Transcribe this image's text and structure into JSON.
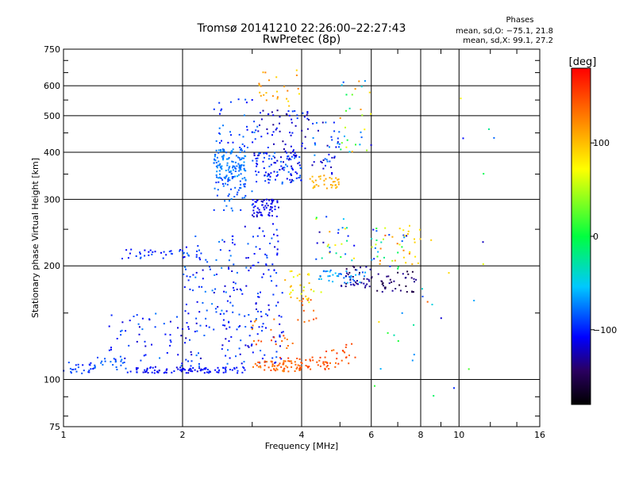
{
  "chart_data": {
    "type": "scatter",
    "title": "Tromsø 20141210 22:26:00–22:27:43",
    "subtitle": "RwPretec (8p)",
    "xlabel": "Frequency [MHz]",
    "ylabel": "Stationary phase Virtual Height [km]",
    "x_scale": "log",
    "y_scale": "log",
    "xlim": [
      1,
      16
    ],
    "ylim": [
      75,
      750
    ],
    "x_ticks": [
      1,
      2,
      4,
      6,
      8,
      10,
      16
    ],
    "x_tick_labels": [
      "1",
      "2",
      "4",
      "6",
      "8",
      "10",
      "16"
    ],
    "y_ticks": [
      75,
      100,
      200,
      300,
      400,
      500,
      600,
      750
    ],
    "y_tick_labels": [
      "75",
      "100",
      "200",
      "300",
      "400",
      "500",
      "600",
      "750"
    ],
    "grid": true,
    "stats": {
      "heading": "Phases",
      "o_line": "mean, sd,O: −75.1, 21.8",
      "x_line": "mean, sd,X:  99.1, 27.2"
    },
    "colorbar": {
      "label": "[deg]",
      "min": -180,
      "max": 180,
      "ticks": [
        100,
        0,
        -100
      ],
      "tick_labels": [
        "100",
        "0",
        "−100"
      ],
      "colormap": "rainbow"
    },
    "clusters": [
      {
        "f": [
          1.0,
          1.2
        ],
        "h": [
          103,
          112
        ],
        "phase": [
          -105,
          -80
        ],
        "n": 25
      },
      {
        "f": [
          1.2,
          1.45
        ],
        "h": [
          105,
          115
        ],
        "phase": [
          -90,
          -75
        ],
        "n": 22
      },
      {
        "f": [
          1.45,
          2.3
        ],
        "h": [
          104,
          108
        ],
        "phase": [
          -120,
          -100
        ],
        "n": 70
      },
      {
        "f": [
          2.3,
          2.9
        ],
        "h": [
          104,
          108
        ],
        "phase": [
          -110,
          -95
        ],
        "n": 30
      },
      {
        "f": [
          1.3,
          2.3
        ],
        "h": [
          108,
          150
        ],
        "phase": [
          -125,
          -75
        ],
        "n": 70
      },
      {
        "f": [
          1.4,
          2.3
        ],
        "h": [
          209,
          222
        ],
        "phase": [
          -110,
          -80
        ],
        "n": 40
      },
      {
        "f": [
          2.0,
          2.7
        ],
        "h": [
          135,
          240
        ],
        "phase": [
          -120,
          -70
        ],
        "n": 70
      },
      {
        "f": [
          2.4,
          2.9
        ],
        "h": [
          340,
          410
        ],
        "phase": [
          -85,
          -65
        ],
        "n": 120
      },
      {
        "f": [
          2.4,
          3.0
        ],
        "h": [
          280,
          345
        ],
        "phase": [
          -100,
          -70
        ],
        "n": 50
      },
      {
        "f": [
          2.4,
          3.1
        ],
        "h": [
          410,
          560
        ],
        "phase": [
          -110,
          -70
        ],
        "n": 35
      },
      {
        "f": [
          2.5,
          3.6
        ],
        "h": [
          110,
          150
        ],
        "phase": [
          -120,
          -75
        ],
        "n": 70
      },
      {
        "f": [
          2.6,
          3.6
        ],
        "h": [
          150,
          260
        ],
        "phase": [
          -120,
          -80
        ],
        "n": 80
      },
      {
        "f": [
          3.0,
          3.5
        ],
        "h": [
          270,
          300
        ],
        "phase": [
          -125,
          -105
        ],
        "n": 60
      },
      {
        "f": [
          3.0,
          4.0
        ],
        "h": [
          330,
          400
        ],
        "phase": [
          -125,
          -75
        ],
        "n": 110
      },
      {
        "f": [
          3.0,
          4.2
        ],
        "h": [
          400,
          520
        ],
        "phase": [
          -135,
          -90
        ],
        "n": 60
      },
      {
        "f": [
          3.0,
          4.0
        ],
        "h": [
          105,
          112
        ],
        "phase": [
          125,
          150
        ],
        "n": 55
      },
      {
        "f": [
          3.5,
          5.0
        ],
        "h": [
          106,
          115
        ],
        "phase": [
          135,
          160
        ],
        "n": 45
      },
      {
        "f": [
          3.0,
          3.8
        ],
        "h": [
          120,
          145
        ],
        "phase": [
          125,
          155
        ],
        "n": 20
      },
      {
        "f": [
          3.9,
          4.4
        ],
        "h": [
          140,
          165
        ],
        "phase": [
          130,
          150
        ],
        "n": 12
      },
      {
        "f": [
          3.6,
          4.6
        ],
        "h": [
          160,
          195
        ],
        "phase": [
          55,
          110
        ],
        "n": 30
      },
      {
        "f": [
          3.1,
          4.0
        ],
        "h": [
          520,
          660
        ],
        "phase": [
          80,
          130
        ],
        "n": 25
      },
      {
        "f": [
          4.2,
          5.0
        ],
        "h": [
          320,
          350
        ],
        "phase": [
          95,
          115
        ],
        "n": 35
      },
      {
        "f": [
          4.2,
          5.0
        ],
        "h": [
          350,
          480
        ],
        "phase": [
          -130,
          -70
        ],
        "n": 40
      },
      {
        "f": [
          4.4,
          5.8
        ],
        "h": [
          180,
          195
        ],
        "phase": [
          -90,
          -50
        ],
        "n": 40
      },
      {
        "f": [
          5.0,
          6.0
        ],
        "h": [
          175,
          200
        ],
        "phase": [
          -150,
          -125
        ],
        "n": 35
      },
      {
        "f": [
          4.3,
          5.5
        ],
        "h": [
          200,
          280
        ],
        "phase": [
          -130,
          130
        ],
        "n": 30
      },
      {
        "f": [
          5.0,
          6.0
        ],
        "h": [
          400,
          620
        ],
        "phase": [
          -120,
          140
        ],
        "n": 30
      },
      {
        "f": [
          4.5,
          5.5
        ],
        "h": [
          110,
          125
        ],
        "phase": [
          130,
          160
        ],
        "n": 18
      },
      {
        "f": [
          6.0,
          7.8
        ],
        "h": [
          170,
          195
        ],
        "phase": [
          -160,
          -130
        ],
        "n": 40
      },
      {
        "f": [
          6.0,
          7.5
        ],
        "h": [
          195,
          260
        ],
        "phase": [
          -130,
          140
        ],
        "n": 40
      },
      {
        "f": [
          7.2,
          8.0
        ],
        "h": [
          200,
          250
        ],
        "phase": [
          75,
          110
        ],
        "n": 14
      },
      {
        "f": [
          6.0,
          9.5
        ],
        "h": [
          95,
          180
        ],
        "phase": [
          -120,
          140
        ],
        "n": 14
      },
      {
        "f": [
          8.5,
          13.0
        ],
        "h": [
          90,
          620
        ],
        "phase": [
          -140,
          140
        ],
        "n": 14
      }
    ]
  }
}
